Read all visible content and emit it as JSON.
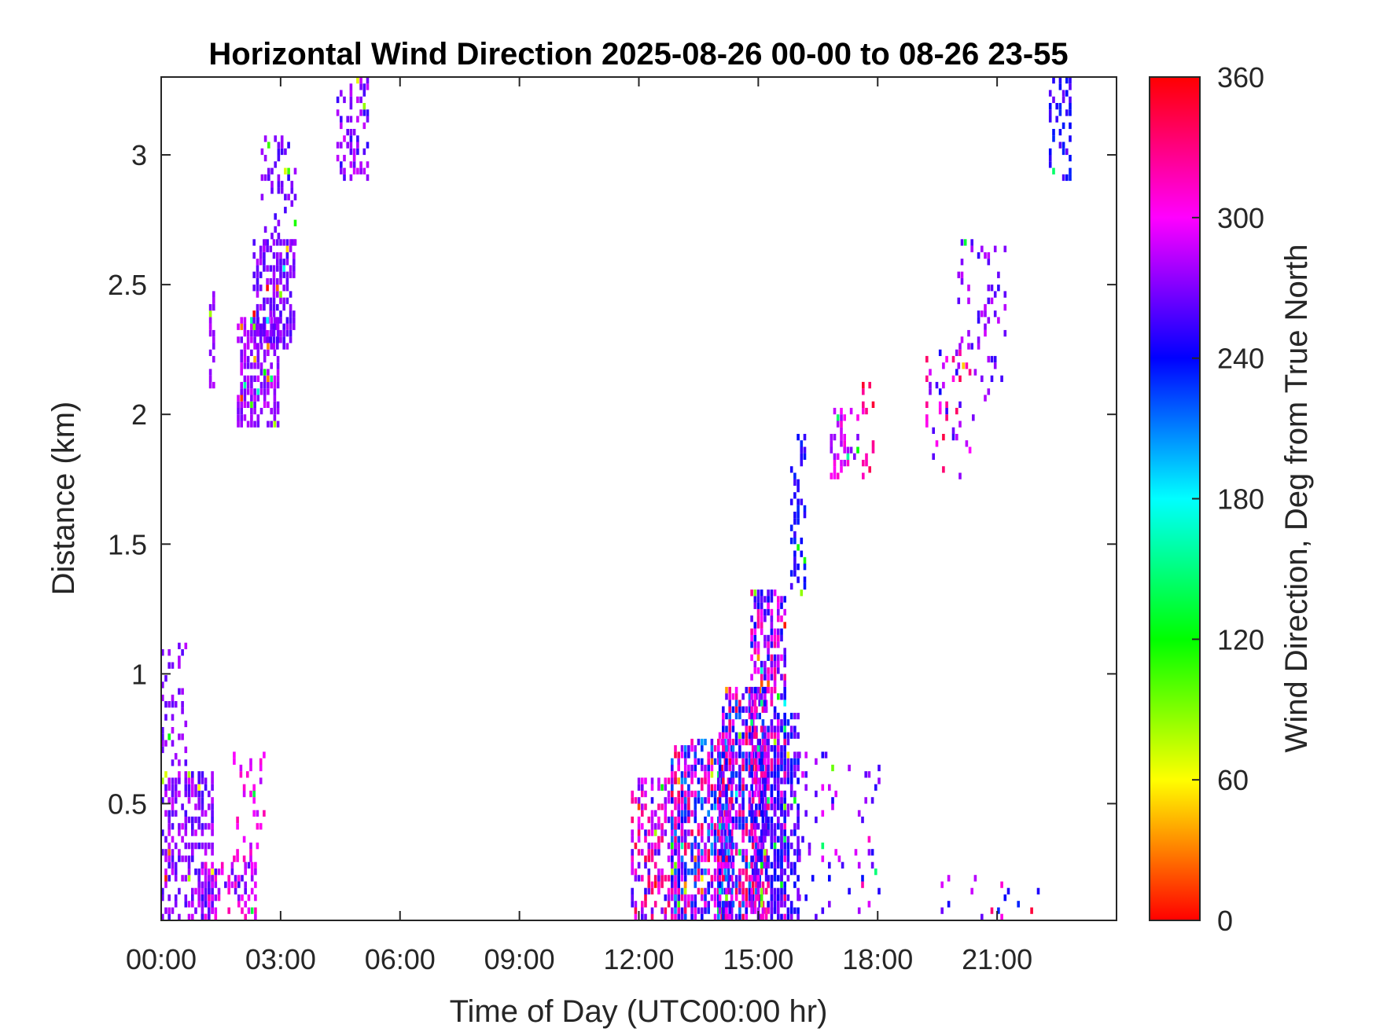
{
  "chart_data": {
    "type": "heatmap",
    "title": "Horizontal Wind Direction 2025-08-26 00-00 to 08-26 23-55",
    "xlabel": "Time of Day (UTC00:00 hr)",
    "ylabel": "Distance (km)",
    "xlim_hours": [
      0,
      24
    ],
    "ylim_km": [
      0.05,
      3.3
    ],
    "x_ticks": [
      {
        "value": 0,
        "label": "00:00"
      },
      {
        "value": 3,
        "label": "03:00"
      },
      {
        "value": 6,
        "label": "06:00"
      },
      {
        "value": 9,
        "label": "09:00"
      },
      {
        "value": 12,
        "label": "12:00"
      },
      {
        "value": 15,
        "label": "15:00"
      },
      {
        "value": 18,
        "label": "18:00"
      },
      {
        "value": 21,
        "label": "21:00"
      }
    ],
    "y_ticks": [
      {
        "value": 0.5,
        "label": "0.5"
      },
      {
        "value": 1,
        "label": "1"
      },
      {
        "value": 1.5,
        "label": "1.5"
      },
      {
        "value": 2,
        "label": "2"
      },
      {
        "value": 2.5,
        "label": "2.5"
      },
      {
        "value": 3,
        "label": "3"
      }
    ],
    "colorbar": {
      "label": "Wind Direction, Deg from True North",
      "range": [
        0,
        360
      ],
      "ticks": [
        {
          "value": 0,
          "label": "0"
        },
        {
          "value": 60,
          "label": "60"
        },
        {
          "value": 120,
          "label": "120"
        },
        {
          "value": 180,
          "label": "180"
        },
        {
          "value": 240,
          "label": "240"
        },
        {
          "value": 300,
          "label": "300"
        },
        {
          "value": 360,
          "label": "360"
        }
      ],
      "colormap": "hsv"
    },
    "grid": false,
    "cell_size": {
      "hours": 0.0833,
      "km": 0.025
    },
    "regions": [
      {
        "t": [
          0.0,
          1.3
        ],
        "d": [
          0.05,
          0.62
        ],
        "dir": [
          255,
          290
        ],
        "density": 0.55
      },
      {
        "t": [
          0.0,
          0.6
        ],
        "d": [
          0.62,
          1.1
        ],
        "dir": [
          260,
          285
        ],
        "density": 0.18
      },
      {
        "t": [
          1.0,
          2.4
        ],
        "d": [
          0.05,
          0.25
        ],
        "dir": [
          250,
          320
        ],
        "density": 0.45
      },
      {
        "t": [
          1.8,
          2.6
        ],
        "d": [
          0.25,
          0.7
        ],
        "dir": [
          280,
          320
        ],
        "density": 0.2
      },
      {
        "t": [
          1.9,
          2.9
        ],
        "d": [
          1.95,
          2.35
        ],
        "dir": [
          265,
          290
        ],
        "density": 0.6
      },
      {
        "t": [
          2.3,
          3.3
        ],
        "d": [
          2.25,
          2.65
        ],
        "dir": [
          255,
          285
        ],
        "density": 0.6
      },
      {
        "t": [
          2.5,
          3.4
        ],
        "d": [
          2.65,
          3.05
        ],
        "dir": [
          250,
          280
        ],
        "density": 0.25
      },
      {
        "t": [
          1.2,
          1.35
        ],
        "d": [
          2.1,
          2.5
        ],
        "dir": [
          270,
          285
        ],
        "density": 0.6
      },
      {
        "t": [
          4.4,
          5.2
        ],
        "d": [
          2.9,
          3.3
        ],
        "dir": [
          250,
          290
        ],
        "density": 0.35
      },
      {
        "t": [
          11.8,
          13.2
        ],
        "d": [
          0.05,
          0.6
        ],
        "dir": [
          250,
          345
        ],
        "density": 0.55
      },
      {
        "t": [
          12.8,
          14.3
        ],
        "d": [
          0.05,
          0.75
        ],
        "dir": [
          200,
          345
        ],
        "density": 0.65
      },
      {
        "t": [
          14.0,
          15.2
        ],
        "d": [
          0.05,
          0.95
        ],
        "dir": [
          210,
          345
        ],
        "density": 0.65
      },
      {
        "t": [
          14.8,
          15.7
        ],
        "d": [
          0.05,
          1.3
        ],
        "dir": [
          230,
          330
        ],
        "density": 0.6
      },
      {
        "t": [
          15.3,
          16.0
        ],
        "d": [
          0.05,
          0.85
        ],
        "dir": [
          230,
          275
        ],
        "density": 0.6
      },
      {
        "t": [
          15.8,
          16.2
        ],
        "d": [
          1.3,
          1.9
        ],
        "dir": [
          230,
          260
        ],
        "density": 0.35
      },
      {
        "t": [
          16.0,
          17.5
        ],
        "d": [
          0.05,
          0.7
        ],
        "dir": [
          240,
          300
        ],
        "density": 0.08
      },
      {
        "t": [
          16.8,
          17.5
        ],
        "d": [
          1.75,
          2.0
        ],
        "dir": [
          270,
          320
        ],
        "density": 0.35
      },
      {
        "t": [
          17.6,
          17.9
        ],
        "d": [
          1.75,
          2.1
        ],
        "dir": [
          300,
          350
        ],
        "density": 0.3
      },
      {
        "t": [
          17.5,
          18.0
        ],
        "d": [
          0.05,
          0.65
        ],
        "dir": [
          230,
          320
        ],
        "density": 0.1
      },
      {
        "t": [
          19.2,
          20.4
        ],
        "d": [
          1.75,
          2.25
        ],
        "dir": [
          240,
          345
        ],
        "density": 0.15
      },
      {
        "t": [
          20.0,
          21.2
        ],
        "d": [
          2.05,
          2.65
        ],
        "dir": [
          250,
          290
        ],
        "density": 0.15
      },
      {
        "t": [
          22.3,
          22.8
        ],
        "d": [
          2.9,
          3.3
        ],
        "dir": [
          230,
          270
        ],
        "density": 0.4
      },
      {
        "t": [
          19.5,
          22.5
        ],
        "d": [
          0.05,
          0.2
        ],
        "dir": [
          230,
          350
        ],
        "density": 0.05
      }
    ]
  }
}
